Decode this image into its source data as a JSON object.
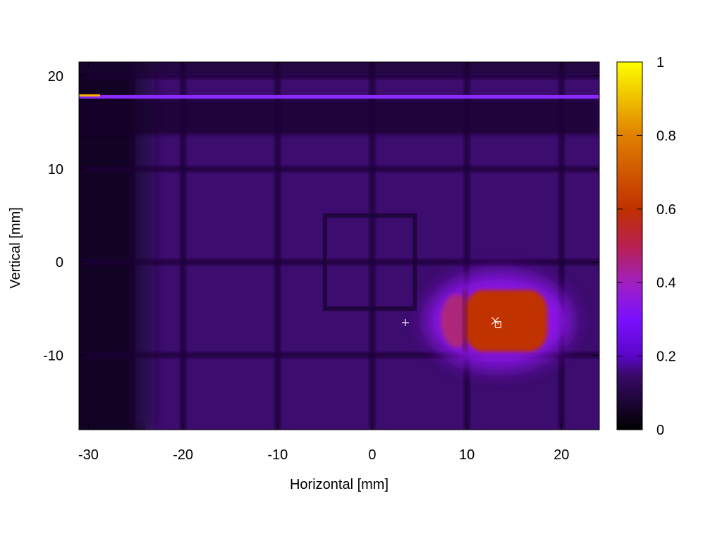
{
  "chart_data": {
    "type": "heatmap",
    "title": "",
    "xlabel": "Horizontal [mm]",
    "ylabel": "Vertical [mm]",
    "xlim": [
      -31,
      24
    ],
    "ylim": [
      -18,
      21.5
    ],
    "x_ticks": [
      -30,
      -20,
      -10,
      0,
      10,
      20
    ],
    "x_tick_labels": [
      "-30",
      "-20",
      "-10",
      "0",
      "10",
      "20"
    ],
    "y_ticks": [
      -10,
      0,
      10,
      20
    ],
    "y_tick_labels": [
      "-10",
      "0",
      "10",
      "20"
    ],
    "colorbar": {
      "range": [
        0,
        1
      ],
      "ticks": [
        0,
        0.2,
        0.4,
        0.6,
        0.8,
        1
      ],
      "tick_labels": [
        "0",
        "0.2",
        "0.4",
        "0.6",
        "0.8",
        "1"
      ],
      "colormap": [
        "#000000",
        "#3a0a6a",
        "#7a10ff",
        "#b0207a",
        "#c03000",
        "#e08000",
        "#ffff00"
      ]
    },
    "background_level": 0.17,
    "dark_left_edge_x": -24,
    "grid_lines": {
      "vertical_x": [
        -20,
        -10,
        0,
        10,
        20
      ],
      "horizontal_y": [
        -10,
        0,
        10,
        20
      ]
    },
    "bright_stripe": {
      "y": 17.8,
      "x_range": [
        -31,
        24
      ],
      "level": 0.25
    },
    "square_outline": {
      "x_range": [
        -5,
        4.5
      ],
      "y_range": [
        -5,
        5
      ]
    },
    "hot_spot": {
      "x_range": [
        9.8,
        18.5
      ],
      "y_range": [
        -9.6,
        -3
      ],
      "center": [
        13.2,
        -6.5
      ],
      "level": 0.55
    },
    "markers": [
      {
        "symbol": "plus",
        "x": 3.5,
        "y": -6.5,
        "color": "#ffffff"
      },
      {
        "symbol": "cross",
        "x": 13,
        "y": -6.3,
        "color": "#ffffff"
      },
      {
        "symbol": "square",
        "x": 13.3,
        "y": -6.7,
        "color": "#ffffff"
      }
    ]
  }
}
